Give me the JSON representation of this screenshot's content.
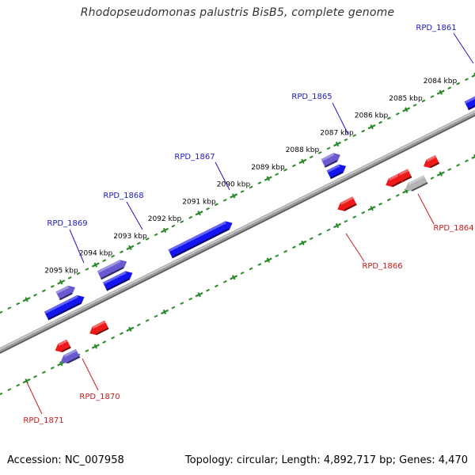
{
  "title": "Rhodopseudomonas palustris BisB5, complete genome",
  "accession": "Accession: NC_007958",
  "summary": "Topology: circular; Length: 4,892,717 bp; Genes: 4,470",
  "colors": {
    "forward_gene": "#1414ee",
    "reverse_gene": "#ee1a1a",
    "highlight_gene": "#6a5ad0",
    "pseudo_gene": "#b4b4b4",
    "tick": "#2a8a2a",
    "backbone": "#8a8a8a",
    "forward_label": "#1a1acc",
    "reverse_label": "#cc1a1a",
    "scale_label": "#000000"
  },
  "scale_labels": [
    "2084 kbp",
    "2085 kbp",
    "2086 kbp",
    "2087 kbp",
    "2088 kbp",
    "2089 kbp",
    "2090 kbp",
    "2091 kbp",
    "2092 kbp",
    "2093 kbp",
    "2094 kbp",
    "2095 kbp"
  ],
  "forward_genes": [
    {
      "kind": "normal",
      "start_kbp": 2095.3,
      "end_kbp": 2094.2
    },
    {
      "kind": "normal",
      "start_kbp": 2093.6,
      "end_kbp": 2092.8
    },
    {
      "kind": "normal",
      "start_kbp": 2091.7,
      "end_kbp": 2089.9
    },
    {
      "kind": "normal",
      "start_kbp": 2087.1,
      "end_kbp": 2086.6
    },
    {
      "kind": "normal",
      "start_kbp": 2083.1,
      "end_kbp": 2082.6
    },
    {
      "kind": "highlight",
      "start_kbp": 2094.8,
      "end_kbp": 2094.3
    },
    {
      "kind": "highlight",
      "start_kbp": 2093.6,
      "end_kbp": 2092.8
    },
    {
      "kind": "highlight",
      "start_kbp": 2087.1,
      "end_kbp": 2086.6
    }
  ],
  "reverse_genes": [
    {
      "kind": "normal",
      "start_kbp": 2095.5,
      "end_kbp": 2095.1
    },
    {
      "kind": "normal",
      "start_kbp": 2094.5,
      "end_kbp": 2094.0
    },
    {
      "kind": "normal",
      "start_kbp": 2087.3,
      "end_kbp": 2086.8
    },
    {
      "kind": "normal",
      "start_kbp": 2085.9,
      "end_kbp": 2085.2
    },
    {
      "kind": "normal",
      "start_kbp": 2085.6,
      "end_kbp": 2085.4
    },
    {
      "kind": "normal",
      "start_kbp": 2084.8,
      "end_kbp": 2084.4
    },
    {
      "kind": "highlight",
      "start_kbp": 2095.5,
      "end_kbp": 2095.0
    },
    {
      "kind": "pseudo",
      "start_kbp": 2085.5,
      "end_kbp": 2084.9
    }
  ],
  "gene_labels": [
    {
      "name": "RPD_1861",
      "strand": "forward"
    },
    {
      "name": "RPD_1865",
      "strand": "forward"
    },
    {
      "name": "RPD_1867",
      "strand": "forward"
    },
    {
      "name": "RPD_1868",
      "strand": "forward"
    },
    {
      "name": "RPD_1869",
      "strand": "forward"
    },
    {
      "name": "RPD_1864",
      "strand": "reverse"
    },
    {
      "name": "RPD_1866",
      "strand": "reverse"
    },
    {
      "name": "RPD_1870",
      "strand": "reverse"
    },
    {
      "name": "RPD_1871",
      "strand": "reverse"
    }
  ]
}
